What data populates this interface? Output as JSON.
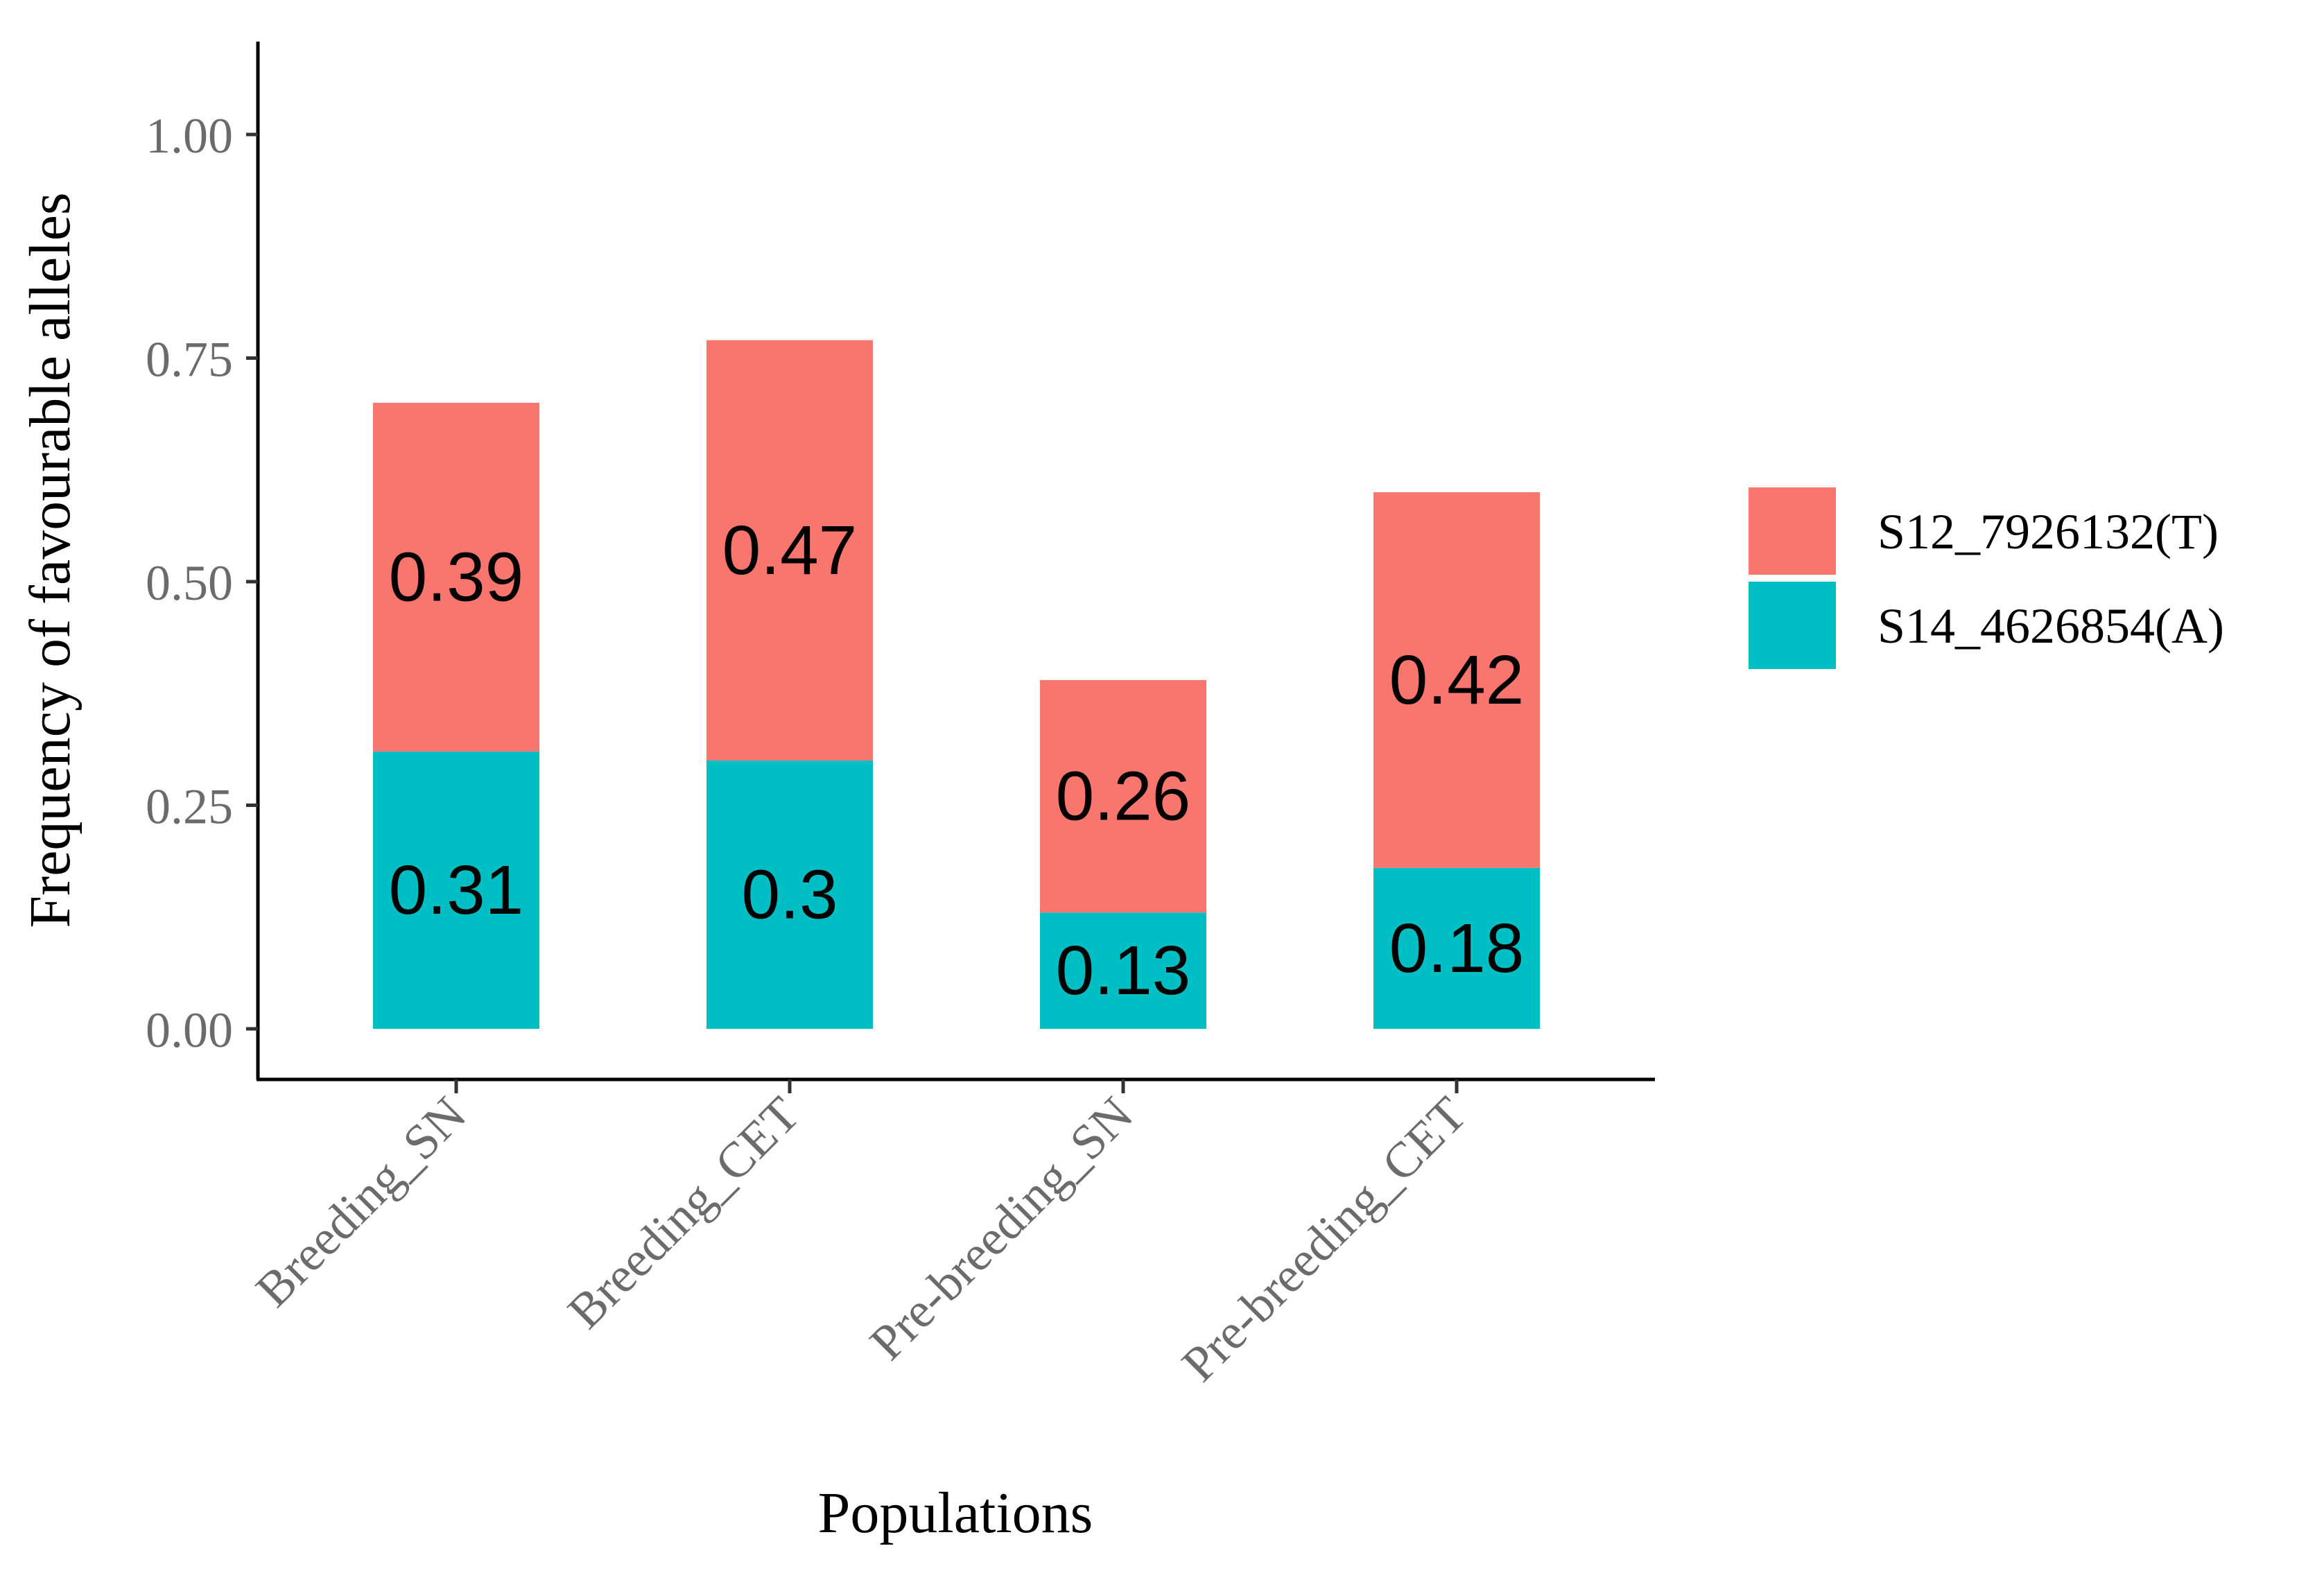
{
  "chart_data": {
    "type": "bar",
    "stacked": true,
    "xlabel": "Populations",
    "ylabel": "Frequency of favourable alleles",
    "ylim": [
      0,
      1.1
    ],
    "yticks": [
      0,
      0.25,
      0.5,
      0.75,
      1.0
    ],
    "ytick_labels": [
      "0.00",
      "0.25",
      "0.50",
      "0.75",
      "1.00"
    ],
    "categories": [
      "Breeding_SN",
      "Breeding_CET",
      "Pre-breeding_SN",
      "Pre-breeding_CET"
    ],
    "series": [
      {
        "name": "S14_4626854(A)",
        "color": "#00BFC4",
        "values": [
          0.31,
          0.3,
          0.13,
          0.18
        ],
        "labels": [
          "0.31",
          "0.3",
          "0.13",
          "0.18"
        ]
      },
      {
        "name": "S12_7926132(T)",
        "color": "#F8766D",
        "values": [
          0.39,
          0.47,
          0.26,
          0.42
        ],
        "labels": [
          "0.39",
          "0.47",
          "0.26",
          "0.42"
        ]
      }
    ],
    "legend": {
      "position": "right",
      "order": [
        "S12_7926132(T)",
        "S14_4626854(A)"
      ]
    },
    "grid": false
  }
}
